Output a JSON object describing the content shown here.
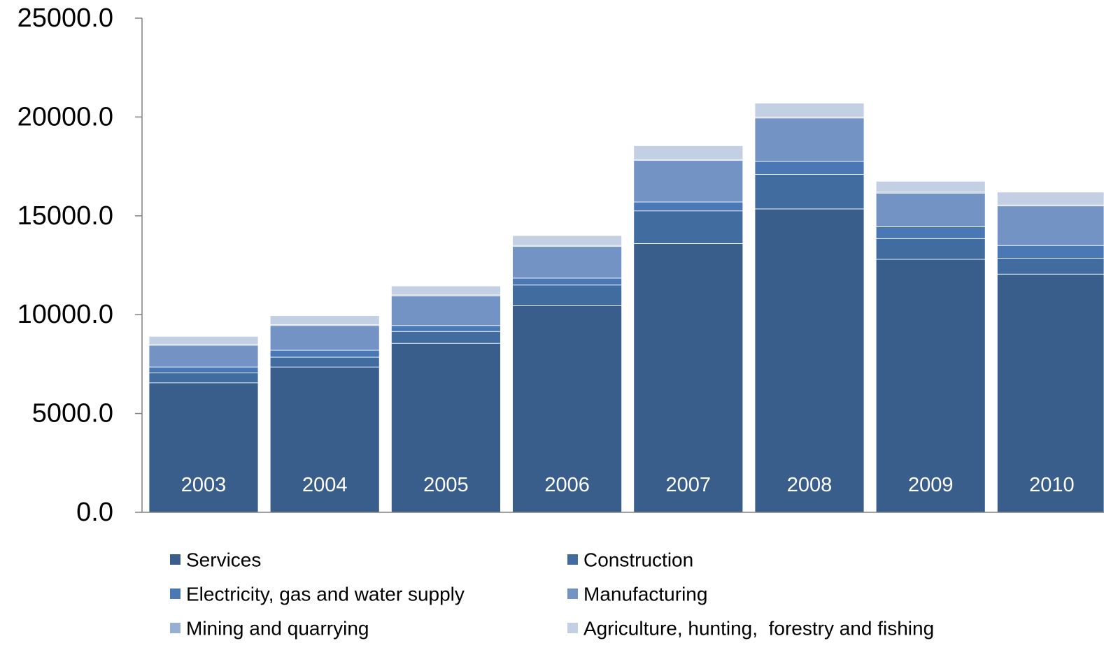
{
  "chart_data": {
    "type": "bar",
    "stacked": true,
    "categories": [
      "2003",
      "2004",
      "2005",
      "2006",
      "2007",
      "2008",
      "2009",
      "2010"
    ],
    "ylim": [
      0,
      25000
    ],
    "yticks": [
      "0.0",
      "5000.0",
      "10000.0",
      "15000.0",
      "20000.0",
      "25000.0"
    ],
    "ytick_values": [
      0,
      5000,
      10000,
      15000,
      20000,
      25000
    ],
    "grid": false,
    "legend_position": "bottom",
    "category_labels_inside_bars": true,
    "series": [
      {
        "name": "Services",
        "color": "#3A5E8C",
        "values": [
          6550,
          7350,
          8550,
          10450,
          13600,
          15350,
          12800,
          12050
        ]
      },
      {
        "name": "Construction",
        "color": "#416CA0",
        "values": [
          500,
          500,
          600,
          1050,
          1650,
          1750,
          1050,
          800
        ]
      },
      {
        "name": "Electricity, gas and water supply",
        "color": "#4A78B4",
        "values": [
          300,
          350,
          300,
          350,
          450,
          650,
          600,
          650
        ]
      },
      {
        "name": "Manufacturing",
        "color": "#7493C5",
        "values": [
          1100,
          1250,
          1500,
          1600,
          2100,
          2200,
          1700,
          2000
        ]
      },
      {
        "name": "Mining and quarrying",
        "color": "#96AFD4",
        "values": [
          50,
          50,
          50,
          50,
          50,
          50,
          50,
          50
        ]
      },
      {
        "name": "Agriculture, hunting,  forestry and fishing",
        "color": "#C3CFE2",
        "values": [
          400,
          450,
          450,
          500,
          700,
          700,
          550,
          650
        ]
      }
    ]
  }
}
